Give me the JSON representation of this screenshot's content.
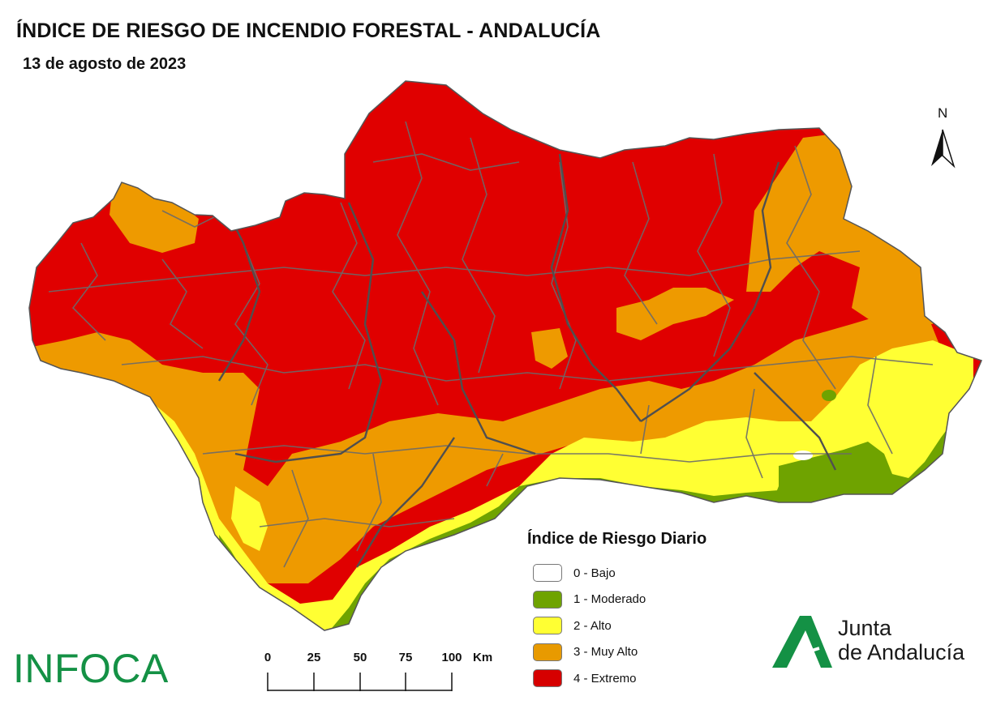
{
  "header": {
    "title": "ÍNDICE DE RIESGO DE INCENDIO FORESTAL - ANDALUCÍA",
    "date": "13 de agosto de 2023"
  },
  "north_arrow": {
    "label": "N"
  },
  "legend": {
    "title": "Índice de Riesgo Diario",
    "items": [
      {
        "label": "0 - Bajo",
        "color": "#ffffff"
      },
      {
        "label": "1 - Moderado",
        "color": "#6fa300"
      },
      {
        "label": "2 - Alto",
        "color": "#ffff33"
      },
      {
        "label": "3 - Muy Alto",
        "color": "#e89a00"
      },
      {
        "label": "4 - Extremo",
        "color": "#d60000"
      }
    ]
  },
  "scale_bar": {
    "ticks": [
      "0",
      "25",
      "50",
      "75",
      "100"
    ],
    "unit": "Km"
  },
  "logos": {
    "infoca": "INFOCA",
    "junta_line1": "Junta",
    "junta_line2": "de Andalucía"
  },
  "map_colors": {
    "extremo": "#e00000",
    "muy_alto": "#ee9a00",
    "alto": "#ffff33",
    "moderado": "#6fa300",
    "bajo": "#ffffff",
    "borders": "#6b6b6b"
  }
}
